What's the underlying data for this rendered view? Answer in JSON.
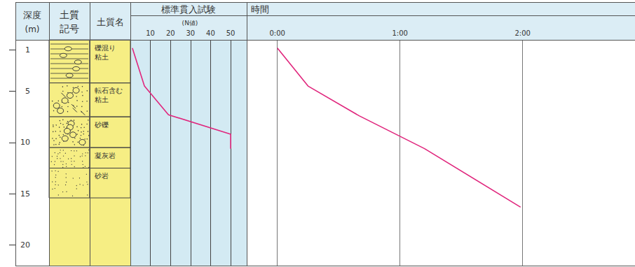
{
  "columns": {
    "depth": "深度",
    "depth_unit": "(m)",
    "symbol": "土質記号",
    "name": "土質名"
  },
  "depth_axis": {
    "ylim": [
      0,
      22
    ],
    "yticks": [
      1,
      5,
      10,
      15,
      20
    ]
  },
  "layers": [
    {
      "name": "礫混り粘土",
      "top": 0,
      "bottom": 4.2
    },
    {
      "name": "転石含む粘土",
      "top": 4.2,
      "bottom": 7.5
    },
    {
      "name": "砂礫",
      "top": 7.5,
      "bottom": 10.5
    },
    {
      "name": "凝灰岩",
      "top": 10.5,
      "bottom": 12.5
    },
    {
      "name": "砂岩",
      "top": 12.5,
      "bottom": 15.4
    }
  ],
  "chart_data": [
    {
      "type": "line",
      "title": "標準貫入試験",
      "x_label": "(N値)",
      "x": [
        1,
        7,
        19,
        50,
        50
      ],
      "y": [
        0.8,
        4.5,
        7.3,
        9.2,
        10.6
      ],
      "xlim": [
        0,
        58
      ],
      "xticks": [
        10,
        20,
        30,
        40,
        50
      ],
      "ylim": [
        0,
        22
      ],
      "color": "#e0267d",
      "grid": true,
      "tick_labels": "x"
    },
    {
      "type": "line",
      "title": "時間",
      "x": [
        0,
        15,
        40,
        72,
        119
      ],
      "y": [
        0.8,
        4.5,
        7.4,
        10.6,
        16.3
      ],
      "xlim": [
        -15,
        175
      ],
      "xticks": [
        {
          "value": 0,
          "label": "0:00"
        },
        {
          "value": 60,
          "label": "1:00"
        },
        {
          "value": 120,
          "label": "2:00"
        }
      ],
      "ylim": [
        0,
        22
      ],
      "color": "#e0267d",
      "grid": true,
      "tick_labels": "x"
    }
  ]
}
